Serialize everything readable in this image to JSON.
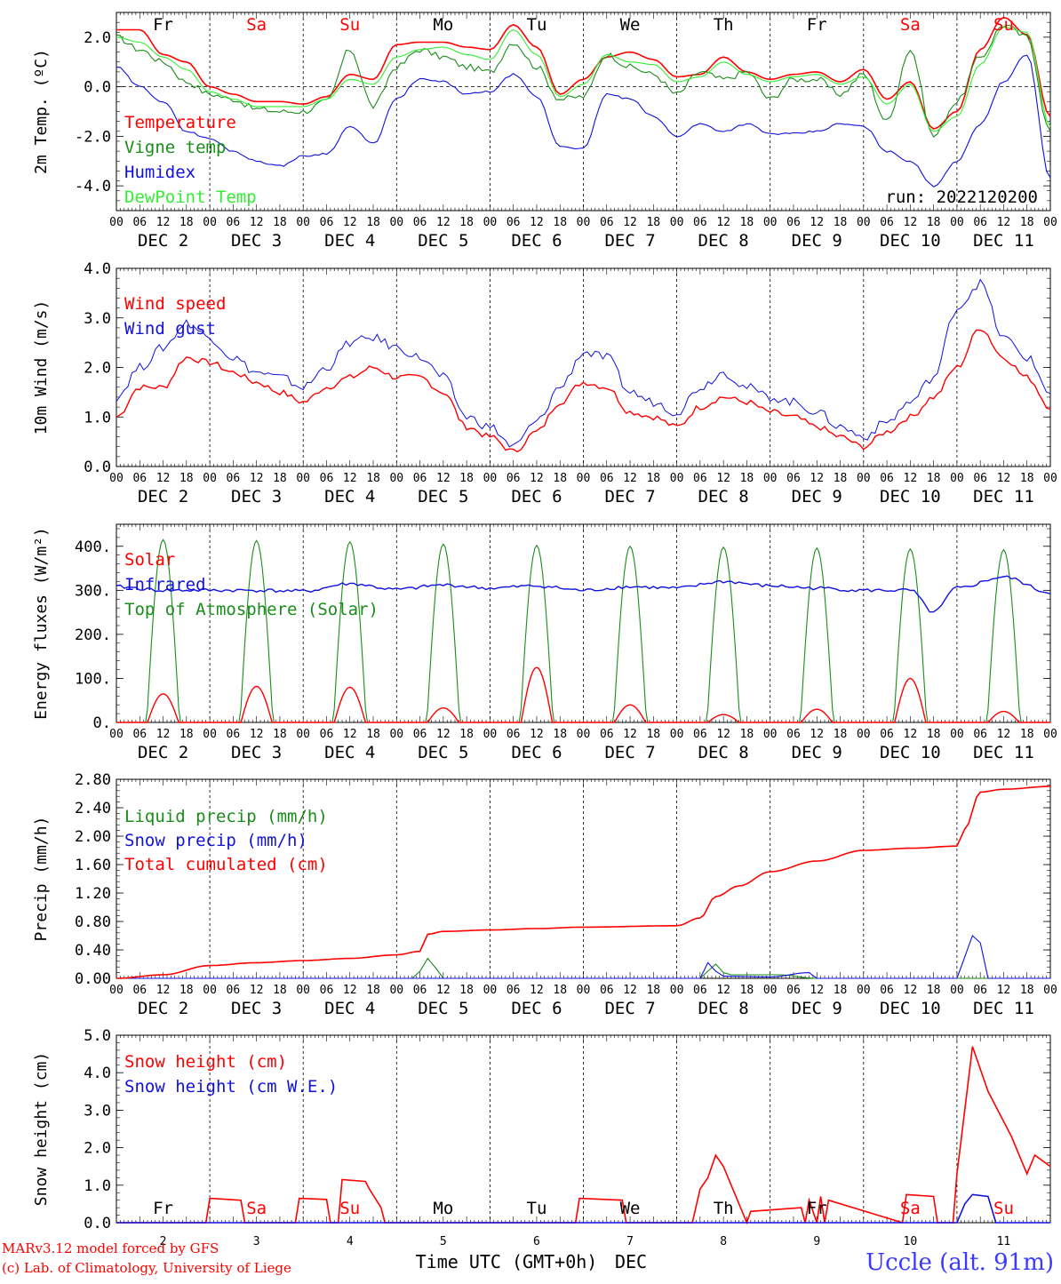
{
  "header": {
    "credit_line1": "MARv3.12 model forced by GFS",
    "credit_line2": "(c) Lab. of Climatology, University of Liege",
    "xlabel": "Time UTC (GMT+0h)",
    "xlabel_month": "DEC",
    "station": "Uccle (alt. 91m)"
  },
  "time_axis": {
    "hour_ticks": [
      "00",
      "06",
      "12",
      "18"
    ],
    "last_tick": "00",
    "dates": [
      "DEC  2",
      "DEC  3",
      "DEC  4",
      "DEC  5",
      "DEC  6",
      "DEC  7",
      "DEC  8",
      "DEC  9",
      "DEC 10",
      "DEC 11"
    ],
    "day_numbers": [
      "2",
      "3",
      "4",
      "5",
      "6",
      "7",
      "8",
      "9",
      "10",
      "11"
    ],
    "weekdays": [
      "Fr",
      "Sa",
      "Su",
      "Mo",
      "Tu",
      "We",
      "Th",
      "Fr",
      "Sa",
      "Su"
    ],
    "weekend_color": "#ff0000",
    "weekday_color": "#000000"
  },
  "colors": {
    "red": "#ff0000",
    "green": "#1a8c1a",
    "blue": "#1010e0",
    "lightgreen": "#33ee33"
  },
  "chart_data": [
    {
      "type": "line",
      "panel": "temperature",
      "ylabel": "2m Temp. (ºC)",
      "ylim": [
        -5.0,
        3.0
      ],
      "yticks": [
        -4.0,
        -2.0,
        0.0,
        2.0
      ],
      "ytick_labels": [
        "-4.0",
        "-2.0",
        "0.0",
        "2.0"
      ],
      "zero_line": true,
      "annotation": "run: 2022120200",
      "x_unit": "hours from DEC 2 00 UTC",
      "series": [
        {
          "name": "Temperature",
          "color": "#ff0000",
          "x": [
            0,
            6,
            12,
            18,
            24,
            30,
            36,
            42,
            48,
            54,
            60,
            66,
            72,
            78,
            84,
            90,
            96,
            102,
            108,
            114,
            120,
            126,
            132,
            138,
            144,
            150,
            156,
            162,
            168,
            174,
            180,
            186,
            192,
            198,
            204,
            210,
            216,
            222,
            228,
            234,
            240
          ],
          "values": [
            2.3,
            2.3,
            1.3,
            1.0,
            0.0,
            -0.3,
            -0.6,
            -0.6,
            -0.7,
            -0.4,
            0.5,
            0.3,
            1.7,
            1.8,
            1.8,
            1.6,
            1.5,
            2.5,
            1.6,
            -0.3,
            0.3,
            1.2,
            1.4,
            1.1,
            0.4,
            0.5,
            1.2,
            0.6,
            0.3,
            0.5,
            0.6,
            0.2,
            0.7,
            -0.5,
            0.2,
            -1.7,
            -1.0,
            1.5,
            2.8,
            2.1,
            -1.2
          ]
        },
        {
          "name": "Vigne temp",
          "color": "#1a8c1a",
          "x": [
            0,
            6,
            12,
            18,
            24,
            30,
            36,
            42,
            48,
            54,
            60,
            66,
            72,
            78,
            84,
            90,
            96,
            102,
            108,
            114,
            120,
            126,
            132,
            138,
            144,
            150,
            156,
            162,
            168,
            174,
            180,
            186,
            192,
            198,
            204,
            210,
            216,
            222,
            228,
            234,
            240
          ],
          "values": [
            2.0,
            1.5,
            1.0,
            0.2,
            -0.3,
            -0.5,
            -0.9,
            -1.0,
            -1.0,
            -0.6,
            1.5,
            -0.8,
            0.8,
            1.5,
            1.2,
            0.8,
            0.6,
            1.8,
            0.8,
            -0.5,
            -0.4,
            1.3,
            0.8,
            0.5,
            -0.3,
            0.6,
            0.3,
            0.6,
            -0.5,
            0.3,
            0.3,
            -0.3,
            0.5,
            -1.4,
            1.5,
            -2.0,
            -0.6,
            1.2,
            2.5,
            2.0,
            -1.8
          ]
        },
        {
          "name": "Humidex",
          "color": "#1010e0",
          "x": [
            0,
            6,
            12,
            18,
            24,
            30,
            36,
            42,
            48,
            54,
            60,
            66,
            72,
            78,
            84,
            90,
            96,
            102,
            108,
            114,
            120,
            126,
            132,
            138,
            144,
            150,
            156,
            162,
            168,
            174,
            180,
            186,
            192,
            198,
            204,
            210,
            216,
            222,
            228,
            234,
            240
          ],
          "values": [
            0.8,
            0.0,
            -0.6,
            -1.8,
            -2.1,
            -2.6,
            -3.0,
            -3.2,
            -2.8,
            -2.7,
            -1.6,
            -2.3,
            -0.5,
            0.3,
            0.2,
            -0.3,
            -0.2,
            0.5,
            -0.4,
            -2.4,
            -2.5,
            -0.3,
            -0.5,
            -1.2,
            -2.0,
            -1.5,
            -1.8,
            -1.5,
            -1.9,
            -1.9,
            -1.8,
            -1.5,
            -1.6,
            -2.6,
            -3.0,
            -4.0,
            -3.0,
            -1.5,
            0.2,
            1.3,
            -3.7
          ]
        },
        {
          "name": "DewPoint Temp",
          "color": "#33ee33",
          "x": [
            0,
            6,
            12,
            18,
            24,
            30,
            36,
            42,
            48,
            54,
            60,
            66,
            72,
            78,
            84,
            90,
            96,
            102,
            108,
            114,
            120,
            126,
            132,
            138,
            144,
            150,
            156,
            162,
            168,
            174,
            180,
            186,
            192,
            198,
            204,
            210,
            216,
            222,
            228,
            234,
            240
          ],
          "values": [
            2.0,
            1.8,
            1.2,
            0.7,
            -0.2,
            -0.5,
            -0.8,
            -0.8,
            -0.8,
            -0.5,
            0.3,
            0.1,
            1.2,
            1.5,
            1.6,
            1.3,
            1.1,
            2.3,
            1.3,
            -0.4,
            0.1,
            1.3,
            1.0,
            0.9,
            0.2,
            0.4,
            1.0,
            0.5,
            0.2,
            0.4,
            0.5,
            0.1,
            0.4,
            -0.7,
            0.1,
            -1.8,
            -1.2,
            0.9,
            2.4,
            2.2,
            -1.6
          ]
        }
      ]
    },
    {
      "type": "line",
      "panel": "wind",
      "ylabel": "10m Wind (m/s)",
      "ylim": [
        0.0,
        4.0
      ],
      "yticks": [
        0.0,
        1.0,
        2.0,
        3.0,
        4.0
      ],
      "ytick_labels": [
        "0.0",
        "1.0",
        "2.0",
        "3.0",
        "4.0"
      ],
      "series": [
        {
          "name": "Wind speed",
          "color": "#ff0000",
          "x": [
            0,
            6,
            12,
            18,
            24,
            30,
            36,
            42,
            48,
            54,
            60,
            66,
            72,
            78,
            84,
            90,
            96,
            102,
            108,
            114,
            120,
            126,
            132,
            138,
            144,
            150,
            156,
            162,
            168,
            174,
            180,
            186,
            192,
            198,
            204,
            210,
            216,
            222,
            228,
            234,
            240
          ],
          "values": [
            1.0,
            1.6,
            1.6,
            2.2,
            2.1,
            1.9,
            1.7,
            1.5,
            1.3,
            1.6,
            1.8,
            2.0,
            1.8,
            1.8,
            1.5,
            0.8,
            0.6,
            0.3,
            0.7,
            1.3,
            1.7,
            1.6,
            1.1,
            1.0,
            0.8,
            1.2,
            1.4,
            1.3,
            1.1,
            1.0,
            0.8,
            0.6,
            0.4,
            0.7,
            1.0,
            1.4,
            2.0,
            2.8,
            2.2,
            1.8,
            1.2
          ]
        },
        {
          "name": "Wind gust",
          "color": "#1010e0",
          "x": [
            0,
            6,
            12,
            18,
            24,
            30,
            36,
            42,
            48,
            54,
            60,
            66,
            72,
            78,
            84,
            90,
            96,
            102,
            108,
            114,
            120,
            126,
            132,
            138,
            144,
            150,
            156,
            162,
            168,
            174,
            180,
            186,
            192,
            198,
            204,
            210,
            216,
            222,
            228,
            234,
            240
          ],
          "values": [
            1.4,
            2.0,
            2.4,
            2.9,
            2.6,
            2.2,
            1.9,
            1.8,
            1.6,
            2.0,
            2.5,
            2.6,
            2.4,
            2.2,
            1.8,
            1.0,
            0.8,
            0.4,
            0.9,
            1.6,
            2.3,
            2.2,
            1.5,
            1.3,
            1.1,
            1.6,
            1.9,
            1.6,
            1.4,
            1.3,
            1.1,
            0.8,
            0.6,
            0.9,
            1.3,
            1.8,
            3.2,
            3.7,
            2.6,
            2.2,
            1.5
          ]
        }
      ]
    },
    {
      "type": "line",
      "panel": "energy",
      "ylabel": "Energy fluxes (W/m²)",
      "ylim": [
        0,
        450
      ],
      "yticks": [
        0,
        100,
        200,
        300,
        400
      ],
      "ytick_labels": [
        "0.",
        "100.",
        "200.",
        "300.",
        "400."
      ],
      "series": [
        {
          "name": "Solar",
          "color": "#ff0000",
          "daily_peak": [
            65,
            82,
            80,
            33,
            125,
            40,
            18,
            30,
            100,
            25
          ]
        },
        {
          "name": "Infrared",
          "color": "#1010e0",
          "x": [
            0,
            12,
            24,
            36,
            48,
            60,
            72,
            84,
            96,
            108,
            120,
            132,
            144,
            156,
            168,
            180,
            192,
            204,
            210,
            216,
            228,
            240
          ],
          "values": [
            308,
            300,
            300,
            300,
            298,
            315,
            302,
            312,
            305,
            310,
            300,
            308,
            305,
            320,
            310,
            305,
            300,
            300,
            250,
            305,
            330,
            295
          ]
        },
        {
          "name": "Top of Atmosphere (Solar)",
          "color": "#1a8c1a",
          "daily_peak": [
            415,
            413,
            410,
            405,
            402,
            400,
            398,
            396,
            394,
            392
          ]
        }
      ]
    },
    {
      "type": "line",
      "panel": "precip",
      "ylabel": "Precip (mm/h)",
      "ylim": [
        0.0,
        2.8
      ],
      "yticks": [
        0.0,
        0.4,
        0.8,
        1.2,
        1.6,
        2.0,
        2.4,
        2.8
      ],
      "ytick_labels": [
        "0.00",
        "0.40",
        "0.80",
        "1.20",
        "1.60",
        "2.00",
        "2.40",
        "2.80"
      ],
      "series": [
        {
          "name": "Liquid precip (mm/h)",
          "color": "#1a8c1a",
          "x": [
            0,
            76,
            78,
            80,
            82,
            84,
            150,
            152,
            154,
            156,
            158,
            170,
            180,
            240
          ],
          "values": [
            0,
            0,
            0.1,
            0.28,
            0.15,
            0,
            0,
            0.1,
            0.2,
            0.08,
            0.05,
            0.05,
            0,
            0
          ]
        },
        {
          "name": "Snow precip (mm/h)",
          "color": "#1010e0",
          "x": [
            0,
            150,
            152,
            154,
            156,
            168,
            178,
            180,
            216,
            218,
            220,
            222,
            224,
            240
          ],
          "values": [
            0,
            0,
            0.22,
            0.1,
            0.03,
            0.02,
            0.08,
            0,
            0,
            0.3,
            0.6,
            0.5,
            0,
            0
          ]
        },
        {
          "name": "Total cumulated (cm)",
          "color": "#ff0000",
          "x": [
            0,
            12,
            24,
            36,
            48,
            60,
            72,
            78,
            80,
            84,
            96,
            108,
            120,
            144,
            150,
            154,
            160,
            168,
            180,
            192,
            204,
            216,
            218,
            222,
            228,
            240
          ],
          "values": [
            0,
            0.05,
            0.18,
            0.22,
            0.25,
            0.28,
            0.33,
            0.38,
            0.62,
            0.66,
            0.68,
            0.7,
            0.72,
            0.74,
            0.85,
            1.15,
            1.3,
            1.5,
            1.65,
            1.8,
            1.83,
            1.86,
            2.1,
            2.62,
            2.66,
            2.7
          ]
        }
      ]
    },
    {
      "type": "line",
      "panel": "snow",
      "ylabel": "Snow height (cm)",
      "ylim": [
        0.0,
        5.0
      ],
      "yticks": [
        0.0,
        1.0,
        2.0,
        3.0,
        4.0,
        5.0
      ],
      "ytick_labels": [
        "0.0",
        "1.0",
        "2.0",
        "3.0",
        "4.0",
        "5.0"
      ],
      "series": [
        {
          "name": "Snow height (cm)",
          "color": "#ff0000",
          "x": [
            0,
            23,
            24,
            32,
            33,
            46,
            47,
            54,
            55,
            57,
            58,
            64,
            65,
            68,
            69,
            118,
            119,
            130,
            131,
            148,
            150,
            152,
            154,
            156,
            158,
            160,
            162,
            163,
            176,
            177,
            178,
            180,
            181,
            182,
            183,
            202,
            203,
            210,
            211,
            215,
            216,
            218,
            220,
            224,
            230,
            234,
            236,
            240
          ],
          "values": [
            0,
            0,
            0.65,
            0.6,
            0,
            0,
            0.65,
            0.62,
            0,
            0,
            1.15,
            1.1,
            0.9,
            0.4,
            0,
            0,
            0.65,
            0.6,
            0,
            0,
            0.9,
            1.2,
            1.8,
            1.5,
            1.0,
            0.5,
            0,
            0.3,
            0.4,
            0,
            0.6,
            0,
            0.7,
            0,
            0.6,
            0,
            0.75,
            0.7,
            0,
            0,
            1.3,
            3.0,
            4.7,
            3.5,
            2.3,
            1.3,
            1.8,
            1.5
          ]
        },
        {
          "name": "Snow height (cm W.E.)",
          "color": "#1010e0",
          "x": [
            0,
            216,
            218,
            220,
            224,
            226,
            240
          ],
          "values": [
            0,
            0,
            0.5,
            0.75,
            0.7,
            0,
            0
          ]
        }
      ]
    }
  ]
}
